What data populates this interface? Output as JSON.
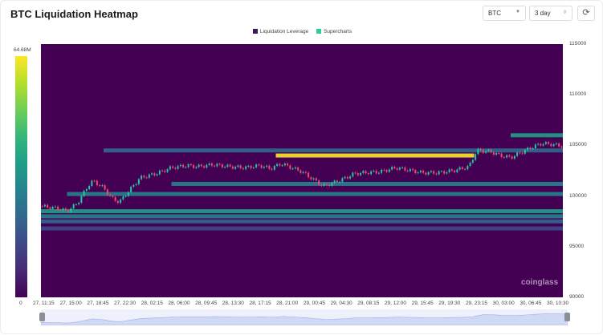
{
  "header": {
    "title": "BTC Liquidation Heatmap"
  },
  "controls": {
    "symbol": "BTC",
    "range": "3 day",
    "refresh_icon": "refresh-icon"
  },
  "legend": {
    "items": [
      {
        "label": "Liquidation Leverage",
        "color": "#3b1a5a"
      },
      {
        "label": "Supercharts",
        "color": "#2ecc9a"
      }
    ]
  },
  "colorbar": {
    "max": "64.68M",
    "min": "0"
  },
  "watermark": "coinglass",
  "chart_data": {
    "type": "heatmap",
    "title": "BTC Liquidation Heatmap",
    "y_ticks": [
      "115000",
      "110000",
      "105000",
      "100000",
      "95000",
      "90000"
    ],
    "ylim": [
      90000,
      115000
    ],
    "x_ticks": [
      "27, 11:15",
      "27, 15:00",
      "27, 18:45",
      "27, 22:30",
      "28, 02:15",
      "28, 06:00",
      "28, 09:45",
      "28, 13:30",
      "28, 17:15",
      "28, 21:00",
      "29, 00:45",
      "29, 04:30",
      "29, 08:15",
      "29, 12:00",
      "29, 15:45",
      "29, 19:30",
      "29, 23:15",
      "30, 03:00",
      "30, 06:45",
      "30, 10:30"
    ],
    "color_scale": {
      "min": 0,
      "max": "64.68M"
    },
    "liquidation_bands": [
      {
        "price": 104000,
        "x_start": 0.45,
        "x_end": 0.83,
        "intensity": 0.95
      },
      {
        "price": 104500,
        "x_start": 0.12,
        "x_end": 1.0,
        "intensity": 0.35
      },
      {
        "price": 106000,
        "x_start": 0.9,
        "x_end": 1.0,
        "intensity": 0.6
      },
      {
        "price": 101200,
        "x_start": 0.25,
        "x_end": 1.0,
        "intensity": 0.45
      },
      {
        "price": 100200,
        "x_start": 0.05,
        "x_end": 1.0,
        "intensity": 0.4
      },
      {
        "price": 98500,
        "x_start": 0.0,
        "x_end": 1.0,
        "intensity": 0.55
      },
      {
        "price": 98000,
        "x_start": 0.0,
        "x_end": 1.0,
        "intensity": 0.45
      },
      {
        "price": 97500,
        "x_start": 0.0,
        "x_end": 1.0,
        "intensity": 0.3
      },
      {
        "price": 96800,
        "x_start": 0.0,
        "x_end": 1.0,
        "intensity": 0.2
      }
    ],
    "price_series": [
      [
        0.0,
        99000
      ],
      [
        0.03,
        98800
      ],
      [
        0.05,
        98500
      ],
      [
        0.07,
        99300
      ],
      [
        0.09,
        101000
      ],
      [
        0.1,
        101500
      ],
      [
        0.12,
        100800
      ],
      [
        0.135,
        99800
      ],
      [
        0.15,
        99400
      ],
      [
        0.17,
        100600
      ],
      [
        0.19,
        101800
      ],
      [
        0.22,
        102200
      ],
      [
        0.25,
        102800
      ],
      [
        0.28,
        103000
      ],
      [
        0.3,
        102900
      ],
      [
        0.33,
        103100
      ],
      [
        0.36,
        102900
      ],
      [
        0.39,
        102800
      ],
      [
        0.42,
        103000
      ],
      [
        0.44,
        102700
      ],
      [
        0.46,
        103200
      ],
      [
        0.48,
        102800
      ],
      [
        0.5,
        102400
      ],
      [
        0.52,
        101700
      ],
      [
        0.54,
        101000
      ],
      [
        0.56,
        101300
      ],
      [
        0.58,
        101700
      ],
      [
        0.6,
        102200
      ],
      [
        0.62,
        102300
      ],
      [
        0.65,
        102400
      ],
      [
        0.68,
        102800
      ],
      [
        0.7,
        102600
      ],
      [
        0.73,
        102300
      ],
      [
        0.76,
        102300
      ],
      [
        0.79,
        102500
      ],
      [
        0.82,
        102900
      ],
      [
        0.835,
        104500
      ],
      [
        0.86,
        104400
      ],
      [
        0.88,
        104000
      ],
      [
        0.9,
        103800
      ],
      [
        0.92,
        104300
      ],
      [
        0.94,
        104800
      ],
      [
        0.96,
        105200
      ],
      [
        0.98,
        105100
      ],
      [
        1.0,
        104900
      ]
    ]
  }
}
